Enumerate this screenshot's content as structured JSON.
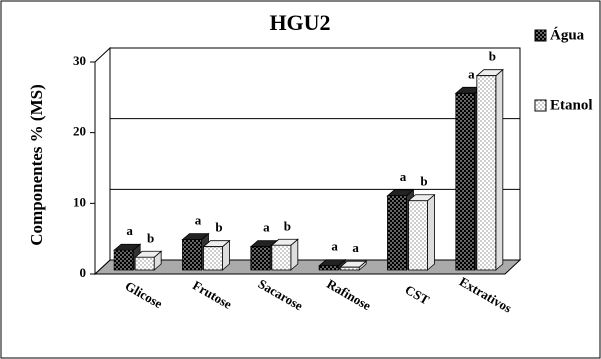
{
  "chart_data": {
    "type": "bar3d",
    "title": "HGU2",
    "y_label": "Componentes % (MS)",
    "categories": [
      "Glicose",
      "Frutose",
      "Sacarose",
      "Rafinose",
      "CST",
      "Extrativos"
    ],
    "series": [
      {
        "name": "Água",
        "color": "#000000",
        "values": [
          2.8,
          4.3,
          3.3,
          0.6,
          10.5,
          25
        ],
        "letters": [
          "a",
          "a",
          "a",
          "a",
          "a",
          "a"
        ]
      },
      {
        "name": "Etanol",
        "color": "#ffffff",
        "values": [
          1.8,
          3.3,
          3.5,
          0.4,
          9.8,
          27.5
        ],
        "letters": [
          "b",
          "b",
          "b",
          "a",
          "b",
          "b"
        ]
      }
    ],
    "ylim": [
      0,
      30
    ],
    "yticks": [
      0,
      10,
      20,
      30
    ],
    "grid": true
  }
}
